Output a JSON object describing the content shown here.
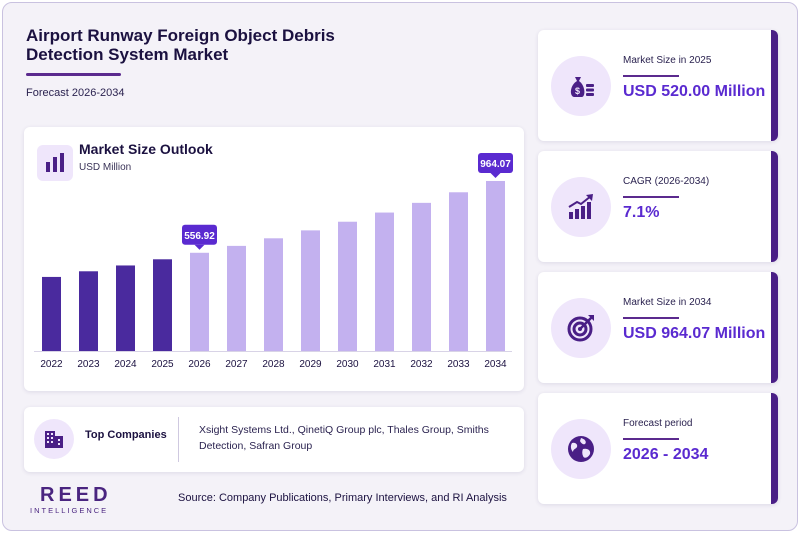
{
  "header": {
    "title": "Airport Runway Foreign Object Debris Detection System Market",
    "forecast": "Forecast 2026-2034"
  },
  "chart_panel": {
    "title": "Market Size Outlook",
    "unit": "USD Million",
    "icon": "bar-chart-icon"
  },
  "chart_data": {
    "type": "bar",
    "title": "Market Size Outlook",
    "ylabel": "USD Million",
    "categories": [
      "2022",
      "2023",
      "2024",
      "2025",
      "2026",
      "2027",
      "2028",
      "2029",
      "2030",
      "2031",
      "2032",
      "2033",
      "2034"
    ],
    "values": [
      420,
      452,
      485,
      520,
      556.92,
      596,
      639,
      684,
      733,
      785,
      840,
      900,
      964.07
    ],
    "ylim": [
      0,
      1100
    ],
    "historical_color": "#4a2a9e",
    "forecast_color": "#c3b1ef",
    "historical_until": "2025",
    "callouts": [
      {
        "category": "2026",
        "label": "556.92"
      },
      {
        "category": "2034",
        "label": "964.07"
      }
    ],
    "callout_color": "#5a2ad0",
    "grid": false,
    "legend": "none"
  },
  "companies": {
    "label": "Top Companies",
    "names": "Xsight Systems Ltd., QinetiQ Group plc, Thales Group, Smiths Detection, Safran Group",
    "icon": "buildings-icon"
  },
  "stats": [
    {
      "label": "Market Size in 2025",
      "value": "USD 520.00 Million",
      "icon": "money-bag-icon"
    },
    {
      "label": "CAGR (2026-2034)",
      "value": "7.1%",
      "icon": "growth-chart-icon"
    },
    {
      "label": "Market Size in 2034",
      "value": "USD 964.07 Million",
      "icon": "target-icon"
    },
    {
      "label": "Forecast period",
      "value": "2026 - 2034",
      "icon": "globe-icon"
    }
  ],
  "logo": {
    "main": "REED",
    "sub": "INTELLIGENCE"
  },
  "source": "Source: Company Publications, Primary Interviews, and RI Analysis",
  "colors": {
    "accent": "#5a2ad0",
    "brand": "#4a1f86",
    "icon_bg": "#efe6fb"
  }
}
